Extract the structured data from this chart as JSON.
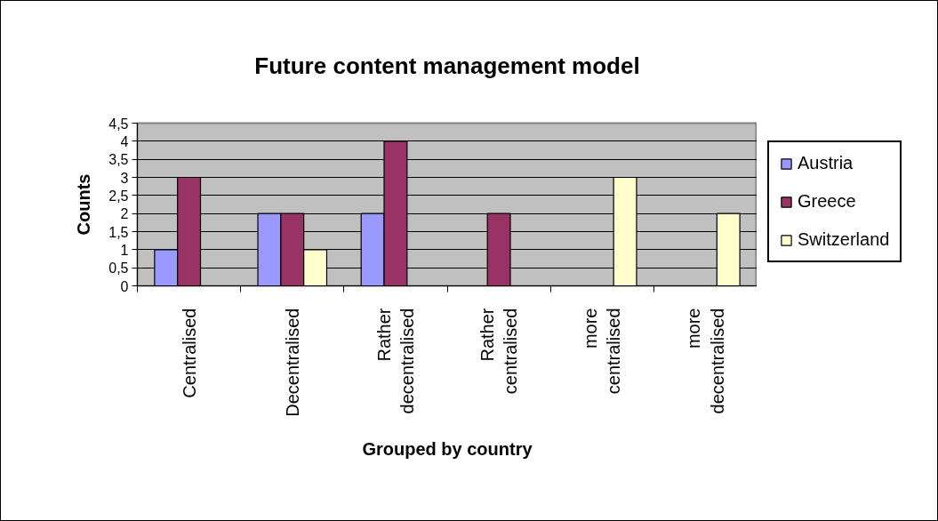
{
  "chart_data": {
    "type": "bar",
    "title": "Future content management model",
    "xlabel": "Grouped by country",
    "ylabel": "Counts",
    "categories": [
      "Centralised",
      "Decentralised",
      "Rather decentralised",
      "Rather centralised",
      "more centralised",
      "more decentralised"
    ],
    "series": [
      {
        "name": "Austria",
        "color": "#9999ff",
        "values": [
          1,
          2,
          2,
          null,
          null,
          null
        ]
      },
      {
        "name": "Greece",
        "color": "#993366",
        "values": [
          3,
          2,
          4,
          2,
          null,
          null
        ]
      },
      {
        "name": "Switzerland",
        "color": "#ffffcc",
        "values": [
          null,
          1,
          null,
          null,
          3,
          2
        ]
      }
    ],
    "ylim": [
      0,
      4.5
    ],
    "yticks": [
      0,
      {
        "value": 0.5,
        "label": "0,5"
      },
      1,
      {
        "value": 1.5,
        "label": "1,5"
      },
      2,
      {
        "value": 2.5,
        "label": "2,5"
      },
      3,
      {
        "value": 3.5,
        "label": "3,5"
      },
      4,
      {
        "value": 4.5,
        "label": "4,5"
      }
    ],
    "grid": "y",
    "legend": "right"
  }
}
